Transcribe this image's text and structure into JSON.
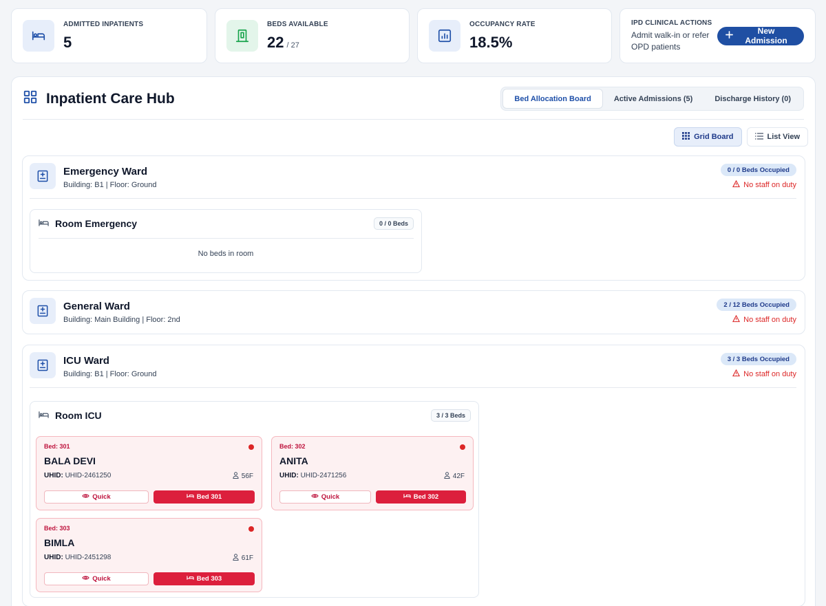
{
  "stats": [
    {
      "label": "ADMITTED INPATIENTS",
      "value": "5",
      "icon": "bed-icon"
    },
    {
      "label": "BEDS AVAILABLE",
      "value": "22",
      "total": "/ 27",
      "icon": "door-icon"
    },
    {
      "label": "OCCUPANCY RATE",
      "value": "18.5%",
      "icon": "chart-icon"
    }
  ],
  "actions": {
    "label": "IPD CLINICAL ACTIONS",
    "description": "Admit walk-in or refer OPD patients",
    "button": "New Admission"
  },
  "hub": {
    "title": "Inpatient Care Hub",
    "tabs": [
      "Bed Allocation Board",
      "Active Admissions (5)",
      "Discharge History (0)"
    ],
    "active_tab": "Bed Allocation Board",
    "views": [
      "Grid Board",
      "List View"
    ],
    "active_view": "Grid Board"
  },
  "wards": [
    {
      "name": "Emergency Ward",
      "building": "Building: B1 | Floor: Ground",
      "occupied": "0 / 0 Beds Occupied",
      "staff": "No staff on duty",
      "rooms": [
        {
          "name": "Room Emergency",
          "count": "0 / 0 Beds",
          "empty_text": "No beds in room"
        }
      ]
    },
    {
      "name": "General Ward",
      "building": "Building: Main Building | Floor: 2nd",
      "occupied": "2 / 12 Beds Occupied",
      "staff": "No staff on duty"
    },
    {
      "name": "ICU Ward",
      "building": "Building: B1 | Floor: Ground",
      "occupied": "3 / 3 Beds Occupied",
      "staff": "No staff on duty",
      "rooms": [
        {
          "name": "Room ICU",
          "count": "3 / 3 Beds",
          "beds": [
            {
              "bed_label": "Bed:  301",
              "patient": "BALA DEVI",
              "uhid_label": "UHID:",
              "uhid": "UHID-2461250",
              "age": "56F",
              "quick": "Quick",
              "bed_btn": "Bed 301"
            },
            {
              "bed_label": "Bed:  302",
              "patient": "ANITA",
              "uhid_label": "UHID:",
              "uhid": "UHID-2471256",
              "age": "42F",
              "quick": "Quick",
              "bed_btn": "Bed 302"
            },
            {
              "bed_label": "Bed:  303",
              "patient": "BIMLA",
              "uhid_label": "UHID:",
              "uhid": "UHID-2451298",
              "age": "61F",
              "quick": "Quick",
              "bed_btn": "Bed 303"
            }
          ]
        }
      ]
    }
  ],
  "colors": {
    "primary": "#1f4fa3",
    "danger": "#dc1f3c",
    "occupied_bg": "#fdf1f2"
  }
}
